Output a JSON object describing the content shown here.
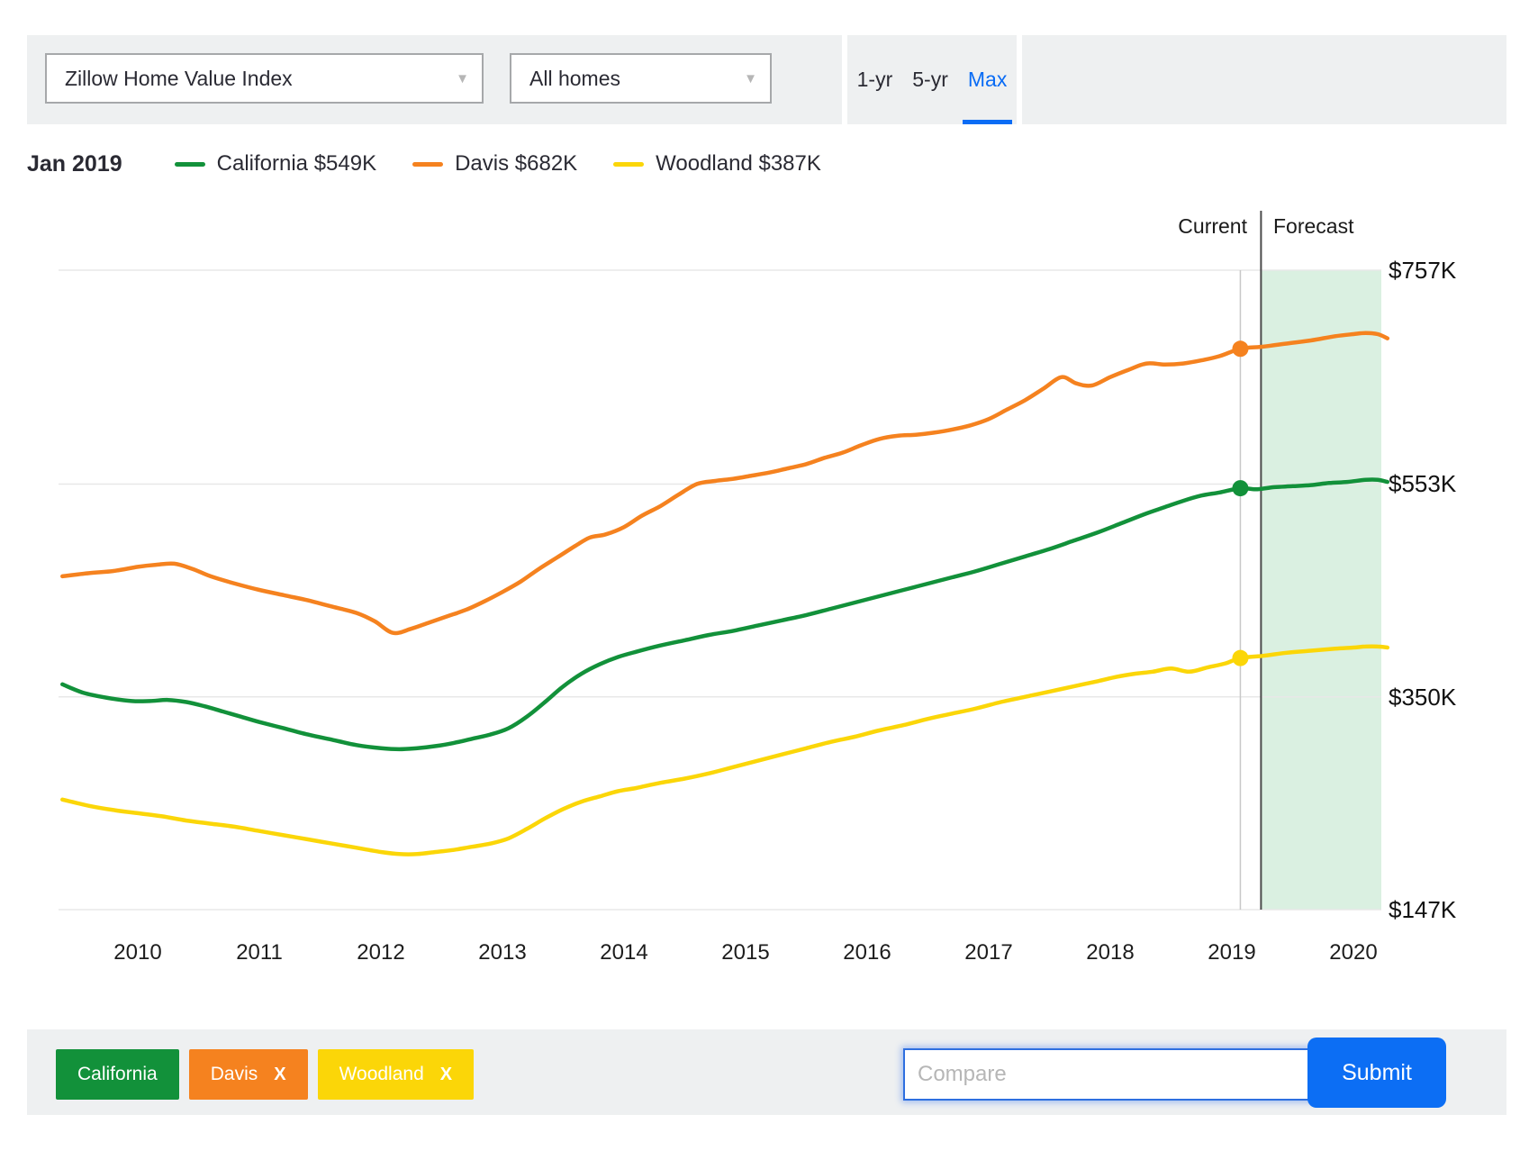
{
  "toolbar": {
    "metric_select": {
      "value": "Zillow Home Value Index"
    },
    "home_type_select": {
      "value": "All homes"
    },
    "range_tabs": [
      {
        "label": "1-yr",
        "active": false
      },
      {
        "label": "5-yr",
        "active": false
      },
      {
        "label": "Max",
        "active": true
      }
    ]
  },
  "legend": {
    "date": "Jan 2019",
    "items": [
      {
        "label": "California $549K",
        "color": "#12913a"
      },
      {
        "label": "Davis $682K",
        "color": "#f5821f"
      },
      {
        "label": "Woodland $387K",
        "color": "#fbd608"
      }
    ]
  },
  "chart_data": {
    "type": "line",
    "title": "Zillow Home Value Index",
    "x_axis": {
      "tick_labels": [
        "2010",
        "2011",
        "2012",
        "2013",
        "2014",
        "2015",
        "2016",
        "2017",
        "2018",
        "2019",
        "2020"
      ],
      "tick_values": [
        2010,
        2011,
        2012,
        2013,
        2014,
        2015,
        2016,
        2017,
        2018,
        2019,
        2020
      ],
      "range": [
        2009.38,
        2020.28
      ]
    },
    "y_axis": {
      "tick_labels": [
        "$757K",
        "$553K",
        "$350K",
        "$147K"
      ],
      "tick_values": [
        757,
        553,
        350,
        147
      ],
      "units": "USD thousands",
      "range": [
        147,
        757
      ]
    },
    "annotations": {
      "current": "Current",
      "forecast": "Forecast",
      "hover_date": "Jan 2019",
      "hover_x": 2019.07,
      "forecast_start_x": 2019.24,
      "forecast_band_color": "#daf0e1",
      "grid_color": "#e8e8e8",
      "hover_line_color": "#c8c8c8",
      "divider_color": "#4b4b4b"
    },
    "series": [
      {
        "name": "California",
        "color": "#12913a",
        "value_at_hover_k": 549,
        "label_at_hover": "$549K",
        "points": [
          [
            2009.38,
            362
          ],
          [
            2009.55,
            354
          ],
          [
            2009.75,
            349
          ],
          [
            2009.95,
            346
          ],
          [
            2010.1,
            346
          ],
          [
            2010.25,
            347
          ],
          [
            2010.4,
            345
          ],
          [
            2010.55,
            341
          ],
          [
            2010.7,
            336
          ],
          [
            2010.85,
            331
          ],
          [
            2011.0,
            326
          ],
          [
            2011.2,
            320
          ],
          [
            2011.4,
            314
          ],
          [
            2011.6,
            309
          ],
          [
            2011.8,
            304
          ],
          [
            2012.0,
            301
          ],
          [
            2012.15,
            300
          ],
          [
            2012.3,
            301
          ],
          [
            2012.45,
            303
          ],
          [
            2012.6,
            306
          ],
          [
            2012.75,
            310
          ],
          [
            2012.9,
            314
          ],
          [
            2013.05,
            320
          ],
          [
            2013.2,
            331
          ],
          [
            2013.35,
            345
          ],
          [
            2013.5,
            360
          ],
          [
            2013.65,
            372
          ],
          [
            2013.8,
            381
          ],
          [
            2013.95,
            388
          ],
          [
            2014.1,
            393
          ],
          [
            2014.3,
            399
          ],
          [
            2014.5,
            404
          ],
          [
            2014.7,
            409
          ],
          [
            2014.9,
            413
          ],
          [
            2015.1,
            418
          ],
          [
            2015.3,
            423
          ],
          [
            2015.5,
            428
          ],
          [
            2015.7,
            434
          ],
          [
            2015.9,
            440
          ],
          [
            2016.1,
            446
          ],
          [
            2016.3,
            452
          ],
          [
            2016.5,
            458
          ],
          [
            2016.7,
            464
          ],
          [
            2016.9,
            470
          ],
          [
            2017.1,
            477
          ],
          [
            2017.3,
            484
          ],
          [
            2017.5,
            491
          ],
          [
            2017.7,
            499
          ],
          [
            2017.9,
            507
          ],
          [
            2018.1,
            516
          ],
          [
            2018.3,
            525
          ],
          [
            2018.45,
            531
          ],
          [
            2018.6,
            537
          ],
          [
            2018.75,
            542
          ],
          [
            2018.9,
            545
          ],
          [
            2019.07,
            549
          ],
          [
            2019.2,
            548
          ],
          [
            2019.35,
            550
          ],
          [
            2019.5,
            551
          ],
          [
            2019.65,
            552
          ],
          [
            2019.8,
            554
          ],
          [
            2019.95,
            555
          ],
          [
            2020.1,
            557
          ],
          [
            2020.2,
            557
          ],
          [
            2020.28,
            555
          ]
        ]
      },
      {
        "name": "Davis",
        "color": "#f5821f",
        "value_at_hover_k": 682,
        "label_at_hover": "$682K",
        "points": [
          [
            2009.38,
            465
          ],
          [
            2009.6,
            468
          ],
          [
            2009.8,
            470
          ],
          [
            2010.0,
            474
          ],
          [
            2010.15,
            476
          ],
          [
            2010.3,
            477
          ],
          [
            2010.45,
            472
          ],
          [
            2010.6,
            465
          ],
          [
            2010.8,
            458
          ],
          [
            2011.0,
            452
          ],
          [
            2011.2,
            447
          ],
          [
            2011.4,
            442
          ],
          [
            2011.6,
            436
          ],
          [
            2011.8,
            430
          ],
          [
            2011.95,
            422
          ],
          [
            2012.1,
            411
          ],
          [
            2012.25,
            415
          ],
          [
            2012.4,
            421
          ],
          [
            2012.55,
            427
          ],
          [
            2012.7,
            433
          ],
          [
            2012.85,
            441
          ],
          [
            2013.0,
            450
          ],
          [
            2013.15,
            460
          ],
          [
            2013.3,
            472
          ],
          [
            2013.45,
            483
          ],
          [
            2013.6,
            494
          ],
          [
            2013.72,
            502
          ],
          [
            2013.85,
            505
          ],
          [
            2014.0,
            512
          ],
          [
            2014.15,
            523
          ],
          [
            2014.3,
            532
          ],
          [
            2014.45,
            543
          ],
          [
            2014.6,
            553
          ],
          [
            2014.75,
            556
          ],
          [
            2014.9,
            558
          ],
          [
            2015.05,
            561
          ],
          [
            2015.2,
            564
          ],
          [
            2015.35,
            568
          ],
          [
            2015.5,
            572
          ],
          [
            2015.65,
            578
          ],
          [
            2015.8,
            583
          ],
          [
            2015.95,
            590
          ],
          [
            2016.1,
            596
          ],
          [
            2016.25,
            599
          ],
          [
            2016.4,
            600
          ],
          [
            2016.55,
            602
          ],
          [
            2016.7,
            605
          ],
          [
            2016.85,
            609
          ],
          [
            2017.0,
            615
          ],
          [
            2017.15,
            624
          ],
          [
            2017.3,
            633
          ],
          [
            2017.45,
            644
          ],
          [
            2017.6,
            655
          ],
          [
            2017.72,
            649
          ],
          [
            2017.85,
            647
          ],
          [
            2018.0,
            655
          ],
          [
            2018.15,
            662
          ],
          [
            2018.3,
            668
          ],
          [
            2018.45,
            667
          ],
          [
            2018.6,
            668
          ],
          [
            2018.75,
            671
          ],
          [
            2018.9,
            675
          ],
          [
            2019.07,
            682
          ],
          [
            2019.25,
            684
          ],
          [
            2019.45,
            687
          ],
          [
            2019.65,
            690
          ],
          [
            2019.85,
            694
          ],
          [
            2020.0,
            696
          ],
          [
            2020.1,
            697
          ],
          [
            2020.2,
            696
          ],
          [
            2020.28,
            692
          ]
        ]
      },
      {
        "name": "Woodland",
        "color": "#fbd608",
        "value_at_hover_k": 387,
        "label_at_hover": "$387K",
        "points": [
          [
            2009.38,
            252
          ],
          [
            2009.6,
            246
          ],
          [
            2009.8,
            242
          ],
          [
            2010.0,
            239
          ],
          [
            2010.2,
            236
          ],
          [
            2010.4,
            232
          ],
          [
            2010.6,
            229
          ],
          [
            2010.8,
            226
          ],
          [
            2011.0,
            222
          ],
          [
            2011.2,
            218
          ],
          [
            2011.4,
            214
          ],
          [
            2011.6,
            210
          ],
          [
            2011.8,
            206
          ],
          [
            2012.0,
            202
          ],
          [
            2012.15,
            200
          ],
          [
            2012.3,
            200
          ],
          [
            2012.45,
            202
          ],
          [
            2012.6,
            204
          ],
          [
            2012.75,
            207
          ],
          [
            2012.9,
            210
          ],
          [
            2013.05,
            215
          ],
          [
            2013.2,
            224
          ],
          [
            2013.35,
            234
          ],
          [
            2013.5,
            243
          ],
          [
            2013.65,
            250
          ],
          [
            2013.8,
            255
          ],
          [
            2013.95,
            260
          ],
          [
            2014.1,
            263
          ],
          [
            2014.3,
            268
          ],
          [
            2014.5,
            272
          ],
          [
            2014.7,
            277
          ],
          [
            2014.9,
            283
          ],
          [
            2015.1,
            289
          ],
          [
            2015.3,
            295
          ],
          [
            2015.5,
            301
          ],
          [
            2015.7,
            307
          ],
          [
            2015.9,
            312
          ],
          [
            2016.1,
            318
          ],
          [
            2016.3,
            323
          ],
          [
            2016.5,
            329
          ],
          [
            2016.7,
            334
          ],
          [
            2016.9,
            339
          ],
          [
            2017.1,
            345
          ],
          [
            2017.3,
            350
          ],
          [
            2017.5,
            355
          ],
          [
            2017.7,
            360
          ],
          [
            2017.9,
            365
          ],
          [
            2018.05,
            369
          ],
          [
            2018.2,
            372
          ],
          [
            2018.35,
            374
          ],
          [
            2018.5,
            377
          ],
          [
            2018.65,
            374
          ],
          [
            2018.8,
            378
          ],
          [
            2018.95,
            382
          ],
          [
            2019.07,
            387
          ],
          [
            2019.25,
            389
          ],
          [
            2019.45,
            392
          ],
          [
            2019.65,
            394
          ],
          [
            2019.85,
            396
          ],
          [
            2020.0,
            397
          ],
          [
            2020.1,
            398
          ],
          [
            2020.2,
            398
          ],
          [
            2020.28,
            397
          ]
        ]
      }
    ],
    "legend_position": "top",
    "grid": "horizontal-only"
  },
  "compare_bar": {
    "chips": [
      {
        "label": "California",
        "color": "#12913a",
        "removable": false
      },
      {
        "label": "Davis",
        "color": "#f5821f",
        "removable": true
      },
      {
        "label": "Woodland",
        "color": "#fbd608",
        "removable": true
      }
    ],
    "remove_icon": "X",
    "input_placeholder": "Compare",
    "submit_label": "Submit"
  },
  "colors": {
    "toolbar_bg": "#eef0f1",
    "accent_blue": "#0a6cf5",
    "submit_blue": "#0c6ef4",
    "input_focus_border": "#2e6fe0"
  }
}
